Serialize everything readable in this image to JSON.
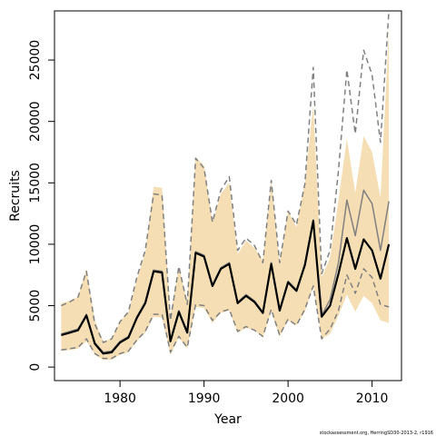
{
  "chart_data": {
    "type": "line",
    "xlabel": "Year",
    "ylabel": "Recruits",
    "xlim": [
      1972.2,
      2013.5
    ],
    "ylim": [
      -1100,
      29000
    ],
    "x_ticks": [
      1980,
      1990,
      2000,
      2010
    ],
    "y_ticks": [
      0,
      5000,
      10000,
      15000,
      20000,
      25000
    ],
    "credit": "stockassessment.org, HerringSD30-2013-2, r1916",
    "colors": {
      "band": "#f5deb3",
      "current": "#000000",
      "previous": "#808080",
      "frame": "#000000"
    },
    "x": [
      1973,
      1974,
      1975,
      1976,
      1977,
      1978,
      1979,
      1980,
      1981,
      1982,
      1983,
      1984,
      1985,
      1986,
      1987,
      1988,
      1989,
      1990,
      1991,
      1992,
      1993,
      1994,
      1995,
      1996,
      1997,
      1998,
      1999,
      2000,
      2001,
      2002,
      2003,
      2004,
      2005,
      2006,
      2007,
      2008,
      2009,
      2010,
      2011,
      2012
    ],
    "series": [
      {
        "role": "estimate",
        "values": [
          2600,
          2800,
          3000,
          4200,
          1900,
          1100,
          1200,
          2000,
          2400,
          4000,
          5200,
          7800,
          7700,
          2100,
          4500,
          2800,
          9300,
          9000,
          6600,
          8000,
          8400,
          5200,
          5800,
          5300,
          4400,
          8400,
          4600,
          6900,
          6200,
          8300,
          11900,
          4100,
          5000,
          7600,
          10500,
          8000,
          10400,
          9500,
          7200,
          10000
        ]
      },
      {
        "role": "confidence-band",
        "upper": [
          5200,
          5400,
          5700,
          8000,
          3800,
          2100,
          2300,
          3700,
          4500,
          7100,
          9300,
          14700,
          14600,
          4200,
          8200,
          5300,
          17100,
          16400,
          11800,
          14100,
          15000,
          9200,
          10300,
          9700,
          8700,
          15200,
          8500,
          12700,
          11400,
          15000,
          21300,
          7300,
          8900,
          13600,
          18600,
          14200,
          18800,
          17500,
          13800,
          27500
        ],
        "lower": [
          1300,
          1400,
          1500,
          2100,
          1000,
          600,
          600,
          1000,
          1200,
          2100,
          2800,
          4100,
          4000,
          1000,
          2400,
          1500,
          4900,
          4800,
          3600,
          4400,
          4600,
          2800,
          3200,
          3000,
          2400,
          4500,
          2500,
          3800,
          3400,
          4500,
          6600,
          2300,
          2700,
          4200,
          5900,
          4500,
          5800,
          5200,
          3800,
          3600
        ]
      },
      {
        "role": "previous-estimate",
        "values": [
          2700,
          2900,
          3100,
          4300,
          2000,
          1200,
          1300,
          2100,
          2500,
          4100,
          5300,
          7900,
          7800,
          2200,
          4600,
          2900,
          9400,
          9100,
          6700,
          8100,
          8500,
          5300,
          5900,
          5400,
          4500,
          8500,
          4700,
          7000,
          6300,
          8400,
          12000,
          4200,
          5500,
          8500,
          13600,
          10700,
          14400,
          13300,
          9500,
          13500
        ]
      },
      {
        "role": "previous-upper",
        "values": [
          5000,
          5300,
          5700,
          7800,
          3500,
          2000,
          2300,
          3700,
          4500,
          7300,
          9500,
          14100,
          14000,
          3800,
          8200,
          5100,
          17000,
          16200,
          11800,
          14400,
          15500,
          9500,
          10500,
          9900,
          8500,
          15200,
          8500,
          12700,
          11600,
          14900,
          24400,
          7600,
          9500,
          16000,
          24200,
          19000,
          25800,
          23800,
          18300,
          29000
        ]
      },
      {
        "role": "previous-lower",
        "values": [
          1400,
          1500,
          1600,
          2300,
          1100,
          700,
          700,
          1100,
          1300,
          2200,
          2900,
          4300,
          4300,
          1200,
          2500,
          1600,
          5100,
          5000,
          3800,
          4500,
          4700,
          2900,
          3300,
          3000,
          2500,
          4700,
          2600,
          3900,
          3400,
          4700,
          6600,
          2300,
          3100,
          4600,
          7500,
          6000,
          8000,
          7300,
          5100,
          4900
        ]
      }
    ]
  }
}
